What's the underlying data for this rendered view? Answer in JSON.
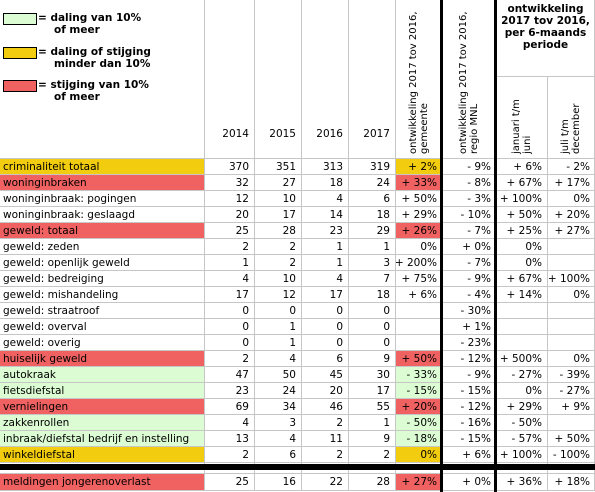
{
  "colors": {
    "green": "#dcfcd4",
    "yellow": "#f2cc0f",
    "red": "#f06161"
  },
  "legend": [
    {
      "color": "green",
      "line1": "= daling van 10%",
      "line2": "of meer"
    },
    {
      "color": "yellow",
      "line1": "= daling of stijging",
      "line2": "minder dan 10%"
    },
    {
      "color": "red",
      "line1": "= stijging van 10%",
      "line2": "of meer"
    }
  ],
  "headers": {
    "years": [
      "2014",
      "2015",
      "2016",
      "2017"
    ],
    "dev_gemeente": "ontwikkeling 2017 tov 2016, gemeente",
    "dev_regio": "ontwikkeling 2017 tov 2016, regio MNL",
    "period_title": "ontwikkeling 2017 tov 2016, per 6-maands periode",
    "period_jan": "januari t/m juni",
    "period_jul": "juli t/m december"
  },
  "rows": [
    {
      "label": "criminaliteit totaal",
      "color": "yellow",
      "v": [
        "370",
        "351",
        "313",
        "319"
      ],
      "gem": "+ 2%",
      "gemColor": "yellow",
      "reg": "- 9%",
      "jan": "+ 6%",
      "jul": "- 2%"
    },
    {
      "label": "woninginbraken",
      "color": "red",
      "v": [
        "32",
        "27",
        "18",
        "24"
      ],
      "gem": "+ 33%",
      "gemColor": "red",
      "reg": "- 8%",
      "jan": "+ 67%",
      "jul": "+ 17%"
    },
    {
      "label": "woninginbraak: pogingen",
      "color": "",
      "v": [
        "12",
        "10",
        "4",
        "6"
      ],
      "gem": "+ 50%",
      "gemColor": "",
      "reg": "- 3%",
      "jan": "+ 100%",
      "jul": "0%"
    },
    {
      "label": "woninginbraak: geslaagd",
      "color": "",
      "v": [
        "20",
        "17",
        "14",
        "18"
      ],
      "gem": "+ 29%",
      "gemColor": "",
      "reg": "- 10%",
      "jan": "+ 50%",
      "jul": "+ 20%"
    },
    {
      "label": "geweld: totaal",
      "color": "red",
      "v": [
        "25",
        "28",
        "23",
        "29"
      ],
      "gem": "+ 26%",
      "gemColor": "red",
      "reg": "- 7%",
      "jan": "+ 25%",
      "jul": "+ 27%"
    },
    {
      "label": "geweld: zeden",
      "color": "",
      "v": [
        "2",
        "2",
        "1",
        "1"
      ],
      "gem": "0%",
      "gemColor": "",
      "reg": "+ 0%",
      "jan": "0%",
      "jul": ""
    },
    {
      "label": "geweld: openlijk geweld",
      "color": "",
      "v": [
        "1",
        "2",
        "1",
        "3"
      ],
      "gem": "+ 200%",
      "gemColor": "",
      "reg": "- 7%",
      "jan": "0%",
      "jul": ""
    },
    {
      "label": "geweld: bedreiging",
      "color": "",
      "v": [
        "4",
        "10",
        "4",
        "7"
      ],
      "gem": "+ 75%",
      "gemColor": "",
      "reg": "- 9%",
      "jan": "+ 67%",
      "jul": "+ 100%"
    },
    {
      "label": "geweld: mishandeling",
      "color": "",
      "v": [
        "17",
        "12",
        "17",
        "18"
      ],
      "gem": "+ 6%",
      "gemColor": "",
      "reg": "- 4%",
      "jan": "+ 14%",
      "jul": "0%"
    },
    {
      "label": "geweld: straatroof",
      "color": "",
      "v": [
        "0",
        "0",
        "0",
        "0"
      ],
      "gem": "",
      "gemColor": "",
      "reg": "- 30%",
      "jan": "",
      "jul": ""
    },
    {
      "label": "geweld: overval",
      "color": "",
      "v": [
        "0",
        "1",
        "0",
        "0"
      ],
      "gem": "",
      "gemColor": "",
      "reg": "+ 1%",
      "jan": "",
      "jul": ""
    },
    {
      "label": "geweld: overig",
      "color": "",
      "v": [
        "0",
        "1",
        "0",
        "0"
      ],
      "gem": "",
      "gemColor": "",
      "reg": "- 23%",
      "jan": "",
      "jul": ""
    },
    {
      "label": "huiselijk geweld",
      "color": "red",
      "v": [
        "2",
        "4",
        "6",
        "9"
      ],
      "gem": "+ 50%",
      "gemColor": "red",
      "reg": "- 12%",
      "jan": "+ 500%",
      "jul": "0%"
    },
    {
      "label": "autokraak",
      "color": "green",
      "v": [
        "47",
        "50",
        "45",
        "30"
      ],
      "gem": "- 33%",
      "gemColor": "green",
      "reg": "- 9%",
      "jan": "- 27%",
      "jul": "- 39%"
    },
    {
      "label": "fietsdiefstal",
      "color": "green",
      "v": [
        "23",
        "24",
        "20",
        "17"
      ],
      "gem": "- 15%",
      "gemColor": "green",
      "reg": "- 15%",
      "jan": "0%",
      "jul": "- 27%"
    },
    {
      "label": "vernielingen",
      "color": "red",
      "v": [
        "69",
        "34",
        "46",
        "55"
      ],
      "gem": "+ 20%",
      "gemColor": "red",
      "reg": "- 12%",
      "jan": "+ 29%",
      "jul": "+ 9%"
    },
    {
      "label": "zakkenrollen",
      "color": "green",
      "v": [
        "4",
        "3",
        "2",
        "1"
      ],
      "gem": "- 50%",
      "gemColor": "green",
      "reg": "- 16%",
      "jan": "- 50%",
      "jul": ""
    },
    {
      "label": "inbraak/diefstal bedrijf en instelling",
      "color": "green",
      "v": [
        "13",
        "4",
        "11",
        "9"
      ],
      "gem": "- 18%",
      "gemColor": "green",
      "reg": "- 15%",
      "jan": "- 57%",
      "jul": "+ 50%"
    },
    {
      "label": "winkeldiefstal",
      "color": "yellow",
      "v": [
        "2",
        "6",
        "2",
        "2"
      ],
      "gem": "0%",
      "gemColor": "yellow",
      "reg": "+ 6%",
      "jan": "+ 100%",
      "jul": "- 100%"
    }
  ],
  "last_row": {
    "label": "meldingen jongerenoverlast",
    "color": "red",
    "v": [
      "25",
      "16",
      "22",
      "28"
    ],
    "gem": "+ 27%",
    "gemColor": "red",
    "reg": "+ 0%",
    "jan": "+ 36%",
    "jul": "+ 18%"
  }
}
